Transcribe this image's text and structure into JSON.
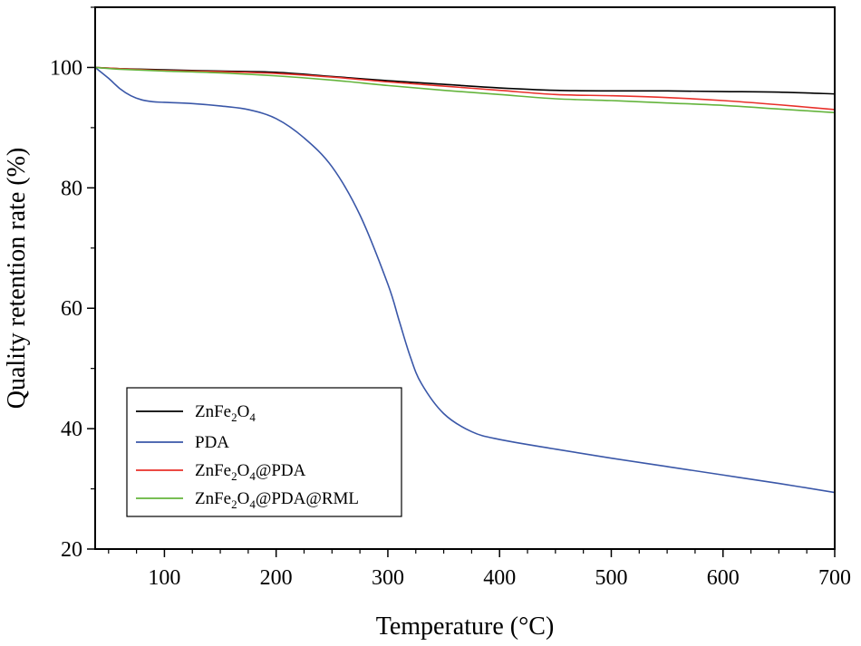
{
  "chart_data": {
    "type": "line",
    "title": "",
    "xlabel": "Temperature (°C)",
    "ylabel": "Quality retention rate (%)",
    "xlim": [
      38,
      700
    ],
    "ylim": [
      20,
      110
    ],
    "xticks": [
      100,
      200,
      300,
      400,
      500,
      600,
      700
    ],
    "yticks": [
      20,
      40,
      60,
      80,
      100
    ],
    "grid": false,
    "legend_position": "bottom-left",
    "series": [
      {
        "name": "ZnFe2O4",
        "legend": [
          {
            "t": "ZnFe"
          },
          {
            "t": "2",
            "sub": true
          },
          {
            "t": "O"
          },
          {
            "t": "4",
            "sub": true
          }
        ],
        "color": "#000000",
        "x": [
          38,
          60,
          100,
          150,
          200,
          250,
          300,
          350,
          400,
          450,
          500,
          550,
          600,
          650,
          700
        ],
        "y": [
          100,
          99.8,
          99.6,
          99.4,
          99.2,
          98.5,
          97.8,
          97.2,
          96.6,
          96.2,
          96.1,
          96.1,
          96.0,
          95.9,
          95.6
        ]
      },
      {
        "name": "PDA",
        "legend": [
          {
            "t": "PDA"
          }
        ],
        "color": "#3a57a8",
        "x": [
          38,
          50,
          60,
          70,
          80,
          90,
          100,
          125,
          150,
          175,
          200,
          225,
          250,
          275,
          300,
          310,
          320,
          330,
          350,
          375,
          400,
          450,
          500,
          550,
          600,
          650,
          700
        ],
        "y": [
          100,
          98.2,
          96.5,
          95.3,
          94.6,
          94.3,
          94.2,
          94.0,
          93.6,
          93.0,
          91.5,
          88.3,
          83.5,
          75.5,
          64.0,
          58.0,
          52.0,
          47.5,
          42.5,
          39.5,
          38.2,
          36.6,
          35.1,
          33.7,
          32.3,
          30.9,
          29.4
        ]
      },
      {
        "name": "ZnFe2O4@PDA",
        "legend": [
          {
            "t": "ZnFe"
          },
          {
            "t": "2",
            "sub": true
          },
          {
            "t": "O"
          },
          {
            "t": "4",
            "sub": true
          },
          {
            "t": "@PDA"
          }
        ],
        "color": "#e8302a",
        "x": [
          38,
          60,
          100,
          150,
          200,
          250,
          300,
          350,
          400,
          450,
          500,
          550,
          600,
          650,
          700
        ],
        "y": [
          100,
          99.8,
          99.5,
          99.3,
          99.0,
          98.4,
          97.6,
          96.9,
          96.2,
          95.5,
          95.3,
          95.0,
          94.5,
          93.8,
          93.0
        ]
      },
      {
        "name": "ZnFe2O4@PDA@RML",
        "legend": [
          {
            "t": "ZnFe"
          },
          {
            "t": "2",
            "sub": true
          },
          {
            "t": "O"
          },
          {
            "t": "4",
            "sub": true
          },
          {
            "t": "@PDA@RML"
          }
        ],
        "color": "#64b43c",
        "x": [
          38,
          60,
          100,
          150,
          200,
          250,
          300,
          350,
          400,
          450,
          500,
          550,
          600,
          650,
          700
        ],
        "y": [
          100,
          99.7,
          99.4,
          99.1,
          98.6,
          97.9,
          97.0,
          96.2,
          95.5,
          94.8,
          94.5,
          94.1,
          93.7,
          93.1,
          92.5
        ]
      }
    ]
  }
}
